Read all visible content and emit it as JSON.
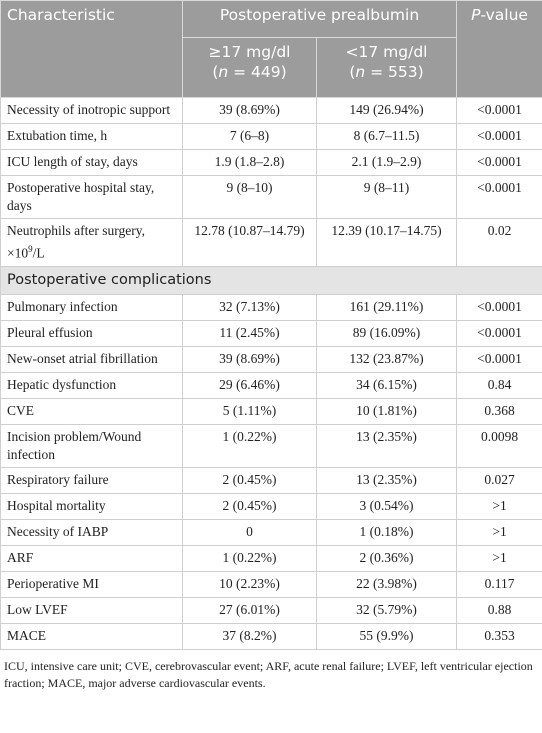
{
  "header": {
    "characteristic": "Characteristic",
    "group": "Postoperative prealbumin",
    "p_value": {
      "italic": "P",
      "rest": "-value"
    },
    "col_a": {
      "line1": "≥17 mg/dl",
      "open": "(",
      "n": "n",
      "rest": " = 449)"
    },
    "col_b": {
      "line1": "<17 mg/dl",
      "open": "(",
      "n": "n",
      "rest": " = 553)"
    }
  },
  "table": {
    "rows": [
      {
        "label": "Necessity of inotropic support",
        "cells": [
          "39 (8.69%)",
          "149 (26.94%)",
          "<0.0001"
        ]
      },
      {
        "label": "Extubation time, h",
        "cells": [
          "7 (6–8)",
          "8 (6.7–11.5)",
          "<0.0001"
        ]
      },
      {
        "label": "ICU length of stay, days",
        "cells": [
          "1.9 (1.8–2.8)",
          "2.1 (1.9–2.9)",
          "<0.0001"
        ]
      },
      {
        "label": "Postoperative hospital stay, days",
        "cells": [
          "9 (8–10)",
          "9 (8–11)",
          "<0.0001"
        ]
      },
      {
        "label": "Neutrophils after surgery, ×10",
        "label_sup": "9",
        "label_end": "/L",
        "cells": [
          "12.78 (10.87–14.79)",
          "12.39 (10.17–14.75)",
          "0.02"
        ]
      },
      {
        "section": "Postoperative complications"
      },
      {
        "label": "Pulmonary infection",
        "cells": [
          "32 (7.13%)",
          "161 (29.11%)",
          "<0.0001"
        ]
      },
      {
        "label": "Pleural effusion",
        "cells": [
          "11 (2.45%)",
          "89 (16.09%)",
          "<0.0001"
        ]
      },
      {
        "label": "New-onset atrial fibrillation",
        "cells": [
          "39 (8.69%)",
          "132 (23.87%)",
          "<0.0001"
        ]
      },
      {
        "label": "Hepatic dysfunction",
        "cells": [
          "29 (6.46%)",
          "34 (6.15%)",
          "0.84"
        ]
      },
      {
        "label": "CVE",
        "cells": [
          "5 (1.11%)",
          "10 (1.81%)",
          "0.368"
        ]
      },
      {
        "label": "Incision problem/Wound infection",
        "cells": [
          "1 (0.22%)",
          "13 (2.35%)",
          "0.0098"
        ]
      },
      {
        "label": "Respiratory failure",
        "cells": [
          "2 (0.45%)",
          "13 (2.35%)",
          "0.027"
        ]
      },
      {
        "label": "Hospital mortality",
        "cells": [
          "2 (0.45%)",
          "3 (0.54%)",
          ">1"
        ]
      },
      {
        "label": "Necessity of IABP",
        "cells": [
          "0",
          "1 (0.18%)",
          ">1"
        ]
      },
      {
        "label": "ARF",
        "cells": [
          "1 (0.22%)",
          "2 (0.36%)",
          ">1"
        ]
      },
      {
        "label": "Perioperative MI",
        "cells": [
          "10 (2.23%)",
          "22 (3.98%)",
          "0.117"
        ]
      },
      {
        "label": "Low LVEF",
        "cells": [
          "27 (6.01%)",
          "32 (5.79%)",
          "0.88"
        ]
      },
      {
        "label": "MACE",
        "cells": [
          "37 (8.2%)",
          "55 (9.9%)",
          "0.353"
        ]
      }
    ]
  },
  "footnote": "ICU, intensive care unit; CVE, cerebrovascular event; ARF, acute renal failure; LVEF, left ventricular ejection fraction; MACE, major adverse cardiovascular events."
}
